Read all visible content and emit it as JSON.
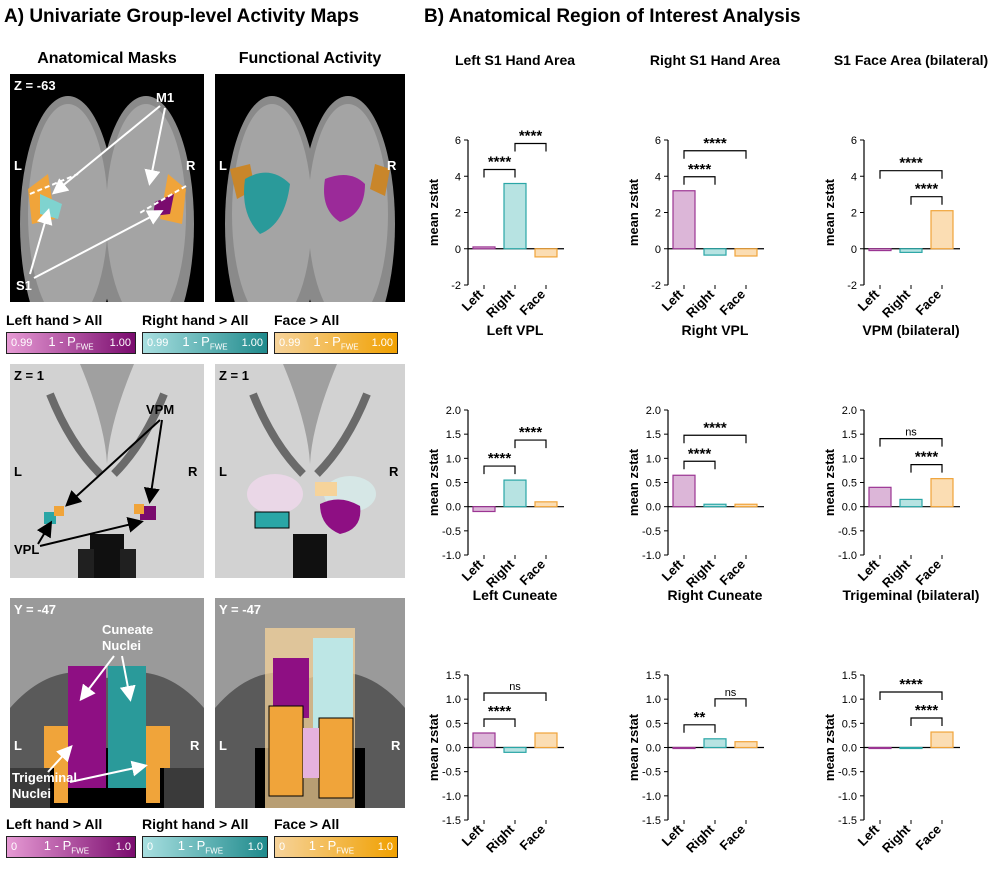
{
  "panelA": {
    "title": "A) Univariate Group-level Activity Maps",
    "col_anatomical": "Anatomical Masks",
    "col_functional": "Functional Activity",
    "z_top": "Z = -63",
    "z_mid": "Z = 1",
    "y_bot": "Y = -47",
    "L": "L",
    "R": "R",
    "label_m1": "M1",
    "label_s1": "S1",
    "label_vpm": "VPM",
    "label_vpl": "VPL",
    "label_cuneate": "Cuneate\nNuclei",
    "label_cuneate_1": "Cuneate",
    "label_cuneate_2": "Nuclei",
    "label_trigeminal_1": "Trigeminal",
    "label_trigeminal_2": "Nuclei",
    "legend_top": [
      {
        "name": "Left hand > All",
        "low": "0.99",
        "mid": "1 - P",
        "sub": "FWE",
        "high": "1.00",
        "c1": "#e69ad4",
        "c2": "#7a0b6e"
      },
      {
        "name": "Right hand > All",
        "low": "0.99",
        "mid": "1 - P",
        "sub": "FWE",
        "high": "1.00",
        "c1": "#a8dfe0",
        "c2": "#1f8a8c"
      },
      {
        "name": "Face > All",
        "low": "0.99",
        "mid": "1 - P",
        "sub": "FWE",
        "high": "1.00",
        "c1": "#f6d39a",
        "c2": "#f0a000"
      }
    ],
    "legend_bottom": [
      {
        "name": "Left hand > All",
        "low": "0",
        "mid": "1 - P",
        "sub": "FWE",
        "high": "1.0",
        "c1": "#e69ad4",
        "c2": "#7a0b6e"
      },
      {
        "name": "Right hand > All",
        "low": "0",
        "mid": "1 - P",
        "sub": "FWE",
        "high": "1.0",
        "c1": "#a8dfe0",
        "c2": "#1f8a8c"
      },
      {
        "name": "Face > All",
        "low": "0",
        "mid": "1 - P",
        "sub": "FWE",
        "high": "1.0",
        "c1": "#f6d39a",
        "c2": "#f0a000"
      }
    ]
  },
  "panelB": {
    "title": "B) Anatomical Region of Interest Analysis"
  },
  "colors": {
    "left": "#9b3593",
    "left_fill": "#dcb6d8",
    "right": "#2aa6a6",
    "right_fill": "#b7e3e2",
    "face": "#f0a43a",
    "face_fill": "#fbddb3"
  },
  "chart_data": [
    {
      "type": "bar",
      "title": "Left S1 Hand Area",
      "ylabel": "mean zstat",
      "categories": [
        "Left",
        "Right",
        "Face"
      ],
      "values": [
        0.1,
        3.6,
        -0.45
      ],
      "ylim": [
        -2,
        6
      ],
      "yticks": [
        "-2",
        "0",
        "2",
        "4",
        "6"
      ],
      "sig": [
        {
          "from": 0,
          "to": 1,
          "label": "****"
        },
        {
          "from": 1,
          "to": 2,
          "label": "****"
        }
      ]
    },
    {
      "type": "bar",
      "title": "Right S1 Hand Area",
      "ylabel": "mean zstat",
      "categories": [
        "Left",
        "Right",
        "Face"
      ],
      "values": [
        3.2,
        -0.35,
        -0.4
      ],
      "ylim": [
        -2,
        6
      ],
      "yticks": [
        "-2",
        "0",
        "2",
        "4",
        "6"
      ],
      "sig": [
        {
          "from": 0,
          "to": 1,
          "label": "****"
        },
        {
          "from": 0,
          "to": 2,
          "label": "****"
        }
      ]
    },
    {
      "type": "bar",
      "title": "S1 Face Area (bilateral)",
      "ylabel": "mean zstat",
      "categories": [
        "Left",
        "Right",
        "Face"
      ],
      "values": [
        -0.1,
        -0.2,
        2.1
      ],
      "ylim": [
        -2,
        6
      ],
      "yticks": [
        "-2",
        "0",
        "2",
        "4",
        "6"
      ],
      "sig": [
        {
          "from": 1,
          "to": 2,
          "label": "****"
        },
        {
          "from": 0,
          "to": 2,
          "label": "****"
        }
      ]
    },
    {
      "type": "bar",
      "title": "Left VPL",
      "ylabel": "mean zstat",
      "categories": [
        "Left",
        "Right",
        "Face"
      ],
      "values": [
        -0.1,
        0.55,
        0.1
      ],
      "ylim": [
        -1,
        2
      ],
      "yticks": [
        "-1.0",
        "-0.5",
        "0.0",
        "0.5",
        "1.0",
        "1.5",
        "2.0"
      ],
      "sig": [
        {
          "from": 0,
          "to": 1,
          "label": "****"
        },
        {
          "from": 1,
          "to": 2,
          "label": "****"
        }
      ]
    },
    {
      "type": "bar",
      "title": "Right VPL",
      "ylabel": "mean zstat",
      "categories": [
        "Left",
        "Right",
        "Face"
      ],
      "values": [
        0.65,
        0.05,
        0.05
      ],
      "ylim": [
        -1,
        2
      ],
      "yticks": [
        "-1.0",
        "-0.5",
        "0.0",
        "0.5",
        "1.0",
        "1.5",
        "2.0"
      ],
      "sig": [
        {
          "from": 0,
          "to": 1,
          "label": "****"
        },
        {
          "from": 0,
          "to": 2,
          "label": "****"
        }
      ]
    },
    {
      "type": "bar",
      "title": "VPM (bilateral)",
      "ylabel": "mean zstat",
      "categories": [
        "Left",
        "Right",
        "Face"
      ],
      "values": [
        0.4,
        0.15,
        0.58
      ],
      "ylim": [
        -1,
        2
      ],
      "yticks": [
        "-1.0",
        "-0.5",
        "0.0",
        "0.5",
        "1.0",
        "1.5",
        "2.0"
      ],
      "sig": [
        {
          "from": 1,
          "to": 2,
          "label": "****"
        },
        {
          "from": 0,
          "to": 2,
          "label": "ns"
        }
      ]
    },
    {
      "type": "bar",
      "title": "Left Cuneate",
      "ylabel": "mean zstat",
      "categories": [
        "Left",
        "Right",
        "Face"
      ],
      "values": [
        0.3,
        -0.1,
        0.3
      ],
      "ylim": [
        -1.5,
        1.5
      ],
      "yticks": [
        "-1.5",
        "-1.0",
        "-0.5",
        "0.0",
        "0.5",
        "1.0",
        "1.5"
      ],
      "sig": [
        {
          "from": 0,
          "to": 1,
          "label": "****"
        },
        {
          "from": 0,
          "to": 2,
          "label": "ns"
        }
      ]
    },
    {
      "type": "bar",
      "title": "Right Cuneate",
      "ylabel": "mean zstat",
      "categories": [
        "Left",
        "Right",
        "Face"
      ],
      "values": [
        0.0,
        0.18,
        0.12
      ],
      "ylim": [
        -1.5,
        1.5
      ],
      "yticks": [
        "-1.5",
        "-1.0",
        "-0.5",
        "0.0",
        "0.5",
        "1.0",
        "1.5"
      ],
      "sig": [
        {
          "from": 0,
          "to": 1,
          "label": "**"
        },
        {
          "from": 1,
          "to": 2,
          "label": "ns"
        }
      ]
    },
    {
      "type": "bar",
      "title": "Trigeminal (bilateral)",
      "ylabel": "mean zstat",
      "categories": [
        "Left",
        "Right",
        "Face"
      ],
      "values": [
        0.0,
        -0.02,
        0.32
      ],
      "ylim": [
        -1.5,
        1.5
      ],
      "yticks": [
        "-1.5",
        "-1.0",
        "-0.5",
        "0.0",
        "0.5",
        "1.0",
        "1.5"
      ],
      "sig": [
        {
          "from": 1,
          "to": 2,
          "label": "****"
        },
        {
          "from": 0,
          "to": 2,
          "label": "****"
        }
      ]
    }
  ]
}
